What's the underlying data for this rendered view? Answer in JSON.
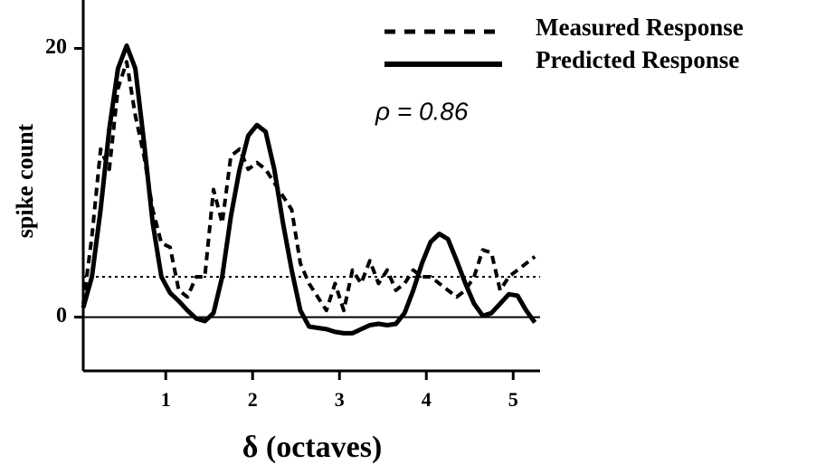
{
  "chart_data": {
    "type": "line",
    "annotation": "ρ = 0.86",
    "xlabel": "δ  (octaves)",
    "ylabel": "spike count",
    "xlim": [
      0.05,
      5.31
    ],
    "ylim": [
      -4,
      23.6
    ],
    "xticks": [
      1,
      2,
      3,
      4,
      5
    ],
    "yticks": [
      0,
      20
    ],
    "zero_line": true,
    "baseline": 3,
    "legend": "upper right",
    "x": [
      0.05,
      0.15,
      0.25,
      0.35,
      0.45,
      0.55,
      0.65,
      0.75,
      0.85,
      0.95,
      1.05,
      1.15,
      1.25,
      1.35,
      1.45,
      1.55,
      1.65,
      1.75,
      1.85,
      1.95,
      2.05,
      2.15,
      2.25,
      2.35,
      2.45,
      2.55,
      2.65,
      2.75,
      2.85,
      2.95,
      3.05,
      3.15,
      3.25,
      3.35,
      3.45,
      3.55,
      3.65,
      3.75,
      3.85,
      3.95,
      4.05,
      4.15,
      4.25,
      4.35,
      4.45,
      4.55,
      4.65,
      4.75,
      4.85,
      4.95,
      5.05,
      5.15,
      5.25
    ],
    "series": [
      {
        "name": "Measured Response",
        "color": "#000000",
        "style": "dashed",
        "values": [
          1,
          6,
          12.5,
          11,
          17,
          19,
          15,
          12,
          8,
          5.5,
          5.2,
          2,
          1.5,
          3,
          3,
          9.5,
          7,
          12,
          12.5,
          11,
          11.5,
          11,
          10,
          9,
          8,
          4,
          2.5,
          1.5,
          0.5,
          2.5,
          0.5,
          3.5,
          2.5,
          4.2,
          2.5,
          3.5,
          2,
          2.5,
          3.5,
          3,
          3,
          2.5,
          2,
          1.5,
          2,
          3,
          5,
          4.8,
          2,
          3,
          3.5,
          4,
          4.5
        ]
      },
      {
        "name": "Predicted Response",
        "color": "#000000",
        "style": "solid",
        "values": [
          0.7,
          3,
          8,
          14,
          18.5,
          20.2,
          18.5,
          13,
          7,
          3,
          1.8,
          1.2,
          0.5,
          -0.1,
          -0.3,
          0.3,
          3,
          7.5,
          11,
          13.5,
          14.3,
          13.8,
          11,
          7,
          3.5,
          0.5,
          -0.7,
          -0.8,
          -0.9,
          -1.1,
          -1.2,
          -1.2,
          -0.9,
          -0.6,
          -0.5,
          -0.6,
          -0.5,
          0.3,
          2,
          4,
          5.6,
          6.2,
          5.8,
          4.2,
          2.5,
          1,
          0.1,
          0.3,
          1,
          1.7,
          1.6,
          0.5,
          -0.4
        ]
      }
    ]
  }
}
